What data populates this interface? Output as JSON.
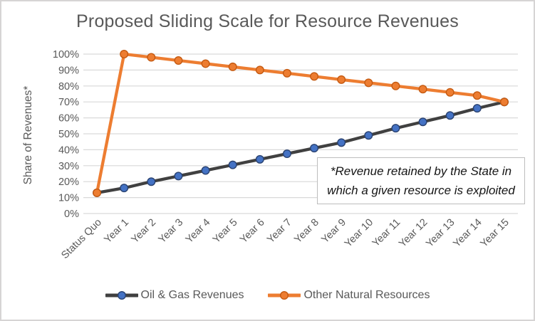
{
  "frame": {
    "border_color": "#D6D4D4",
    "background": "#FFFFFF"
  },
  "chart_data": {
    "type": "line",
    "title": "Proposed Sliding Scale for Resource Revenues",
    "ylabel": "Share of Revenues*",
    "xlabel": "",
    "categories": [
      "Status Quo",
      "Year 1",
      "Year 2",
      "Year 3",
      "Year 4",
      "Year 5",
      "Year 6",
      "Year 7",
      "Year 8",
      "Year 9",
      "Year 10",
      "Year 11",
      "Year 12",
      "Year 13",
      "Year 14",
      "Year 15"
    ],
    "series": [
      {
        "name": "Oil & Gas Revenues",
        "line_color": "#404040",
        "marker_fill": "#4472C4",
        "marker_stroke": "#2A4270",
        "values": [
          13,
          16,
          20,
          23.5,
          27,
          30.5,
          34,
          37.5,
          41,
          44.5,
          49,
          53.5,
          57.5,
          61.5,
          66,
          70
        ]
      },
      {
        "name": "Other Natural Resources",
        "line_color": "#ED7D31",
        "marker_fill": "#ED7D31",
        "marker_stroke": "#C55A11",
        "values": [
          13,
          100,
          98,
          96,
          94,
          92,
          90,
          88,
          86,
          84,
          82,
          80,
          78,
          76,
          74,
          70
        ]
      }
    ],
    "ylim": [
      0,
      100
    ],
    "ytick_step": 10,
    "yticks": [
      "0%",
      "10%",
      "20%",
      "30%",
      "40%",
      "50%",
      "60%",
      "70%",
      "80%",
      "90%",
      "100%"
    ],
    "grid": true,
    "grid_color": "#D9D9D9",
    "axis_text_color": "#595959",
    "title_color": "#595959",
    "legend_position": "bottom",
    "annotation": {
      "line1": "*Revenue retained by the State in",
      "line2": "which a given resource is exploited"
    }
  }
}
